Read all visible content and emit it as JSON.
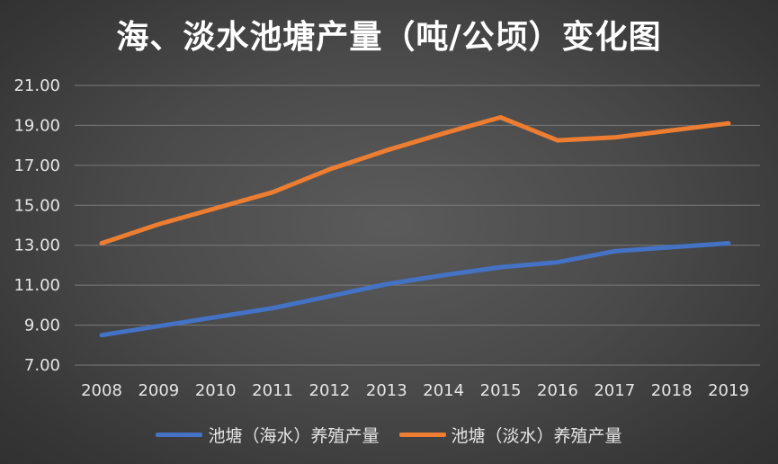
{
  "chart_data": {
    "type": "line",
    "title": "海、淡水池塘产量（吨/公顷）变化图",
    "categories": [
      "2008",
      "2009",
      "2010",
      "2011",
      "2012",
      "2013",
      "2014",
      "2015",
      "2016",
      "2017",
      "2018",
      "2019"
    ],
    "ylim": [
      7,
      21
    ],
    "yticks": [
      "7.00",
      "9.00",
      "11.00",
      "13.00",
      "15.00",
      "17.00",
      "19.00",
      "21.00"
    ],
    "grid": true,
    "legend_position": "bottom",
    "series": [
      {
        "name": "池塘（海水）养殖产量",
        "color": "#4472c4",
        "values": [
          8.5,
          8.95,
          9.4,
          9.85,
          10.45,
          11.05,
          11.5,
          11.9,
          12.15,
          12.7,
          12.9,
          13.1
        ]
      },
      {
        "name": "池塘（淡水）养殖产量",
        "color": "#ed7d31",
        "values": [
          13.1,
          14.05,
          14.85,
          15.65,
          16.8,
          17.75,
          18.6,
          19.4,
          18.25,
          18.4,
          18.75,
          19.1
        ]
      }
    ]
  }
}
